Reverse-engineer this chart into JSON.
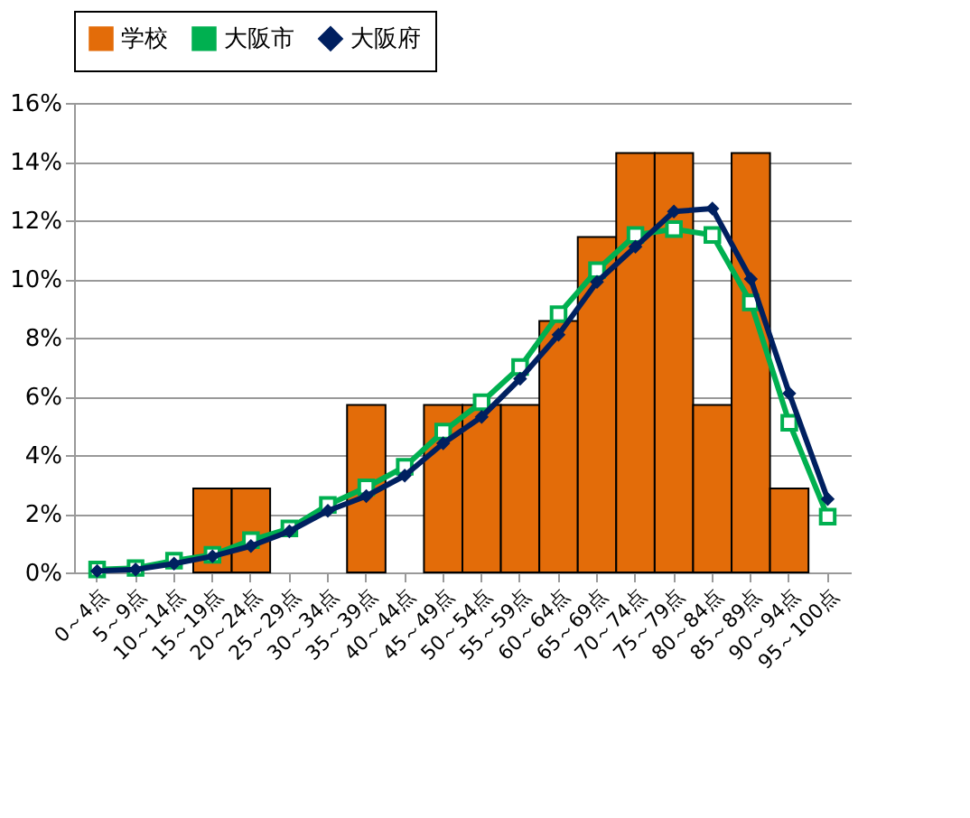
{
  "chart_data": {
    "type": "bar",
    "categories": [
      "0～4点",
      "5～9点",
      "10～14点",
      "15～19点",
      "20～24点",
      "25～29点",
      "30～34点",
      "35～39点",
      "40～44点",
      "45～49点",
      "50～54点",
      "55～59点",
      "60～64点",
      "65～69点",
      "70～74点",
      "75～79点",
      "80～84点",
      "85～89点",
      "90～94点",
      "95～100点"
    ],
    "series": [
      {
        "name": "学校",
        "color": "#e36c09",
        "values": [
          0,
          0,
          0,
          2.86,
          2.86,
          0,
          0,
          5.71,
          0,
          5.71,
          5.71,
          5.71,
          8.57,
          11.43,
          14.29,
          14.29,
          5.71,
          14.29,
          2.86,
          0
        ]
      },
      {
        "name": "大阪市",
        "type": "line",
        "marker": "square",
        "color": "#00b050",
        "values": [
          0.1,
          0.15,
          0.4,
          0.6,
          1.1,
          1.5,
          2.3,
          2.9,
          3.6,
          4.8,
          5.8,
          7.0,
          8.8,
          10.3,
          11.5,
          11.7,
          11.5,
          9.2,
          5.1,
          1.9
        ]
      },
      {
        "name": "大阪府",
        "type": "line",
        "marker": "diamond",
        "color": "#002060",
        "values": [
          0.05,
          0.1,
          0.3,
          0.55,
          0.9,
          1.4,
          2.1,
          2.6,
          3.3,
          4.4,
          5.3,
          6.6,
          8.1,
          9.9,
          11.1,
          12.3,
          12.4,
          10.0,
          6.1,
          2.5
        ]
      }
    ],
    "ylim": [
      0,
      16
    ],
    "yticks": [
      {
        "value": 0,
        "label": "0%"
      },
      {
        "value": 2,
        "label": "2%"
      },
      {
        "value": 4,
        "label": "4%"
      },
      {
        "value": 6,
        "label": "6%"
      },
      {
        "value": 8,
        "label": "8%"
      },
      {
        "value": 10,
        "label": "10%"
      },
      {
        "value": 12,
        "label": "12%"
      },
      {
        "value": 14,
        "label": "14%"
      },
      {
        "value": 16,
        "label": "16%"
      }
    ],
    "grid": "y",
    "legend": "top"
  }
}
